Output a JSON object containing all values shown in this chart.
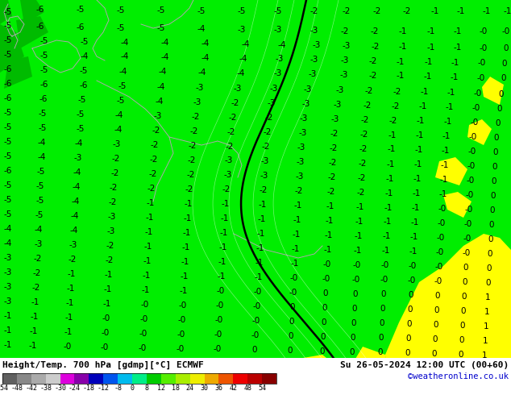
{
  "title_left": "Height/Temp. 700 hPa [gdmp][°C] ECMWF",
  "title_right": "Su 26-05-2024 12:00 UTC (00+60)",
  "credit": "©weatheronline.co.uk",
  "colorbar_colors": [
    "#606060",
    "#888888",
    "#aaaaaa",
    "#cccccc",
    "#dd00dd",
    "#8800aa",
    "#0000bb",
    "#0055ee",
    "#00bbee",
    "#00ee88",
    "#00cc00",
    "#55ee00",
    "#aaee00",
    "#eeee00",
    "#eeaa00",
    "#ee5500",
    "#ee0000",
    "#bb0000",
    "#880000"
  ],
  "colorbar_tick_labels": [
    "-54",
    "-48",
    "-42",
    "-38",
    "-30",
    "-24",
    "-18",
    "-12",
    "-8",
    "0",
    "8",
    "12",
    "18",
    "24",
    "30",
    "36",
    "42",
    "48",
    "54"
  ],
  "map_bg_color": "#00ee00",
  "darker_green": "#00bb00",
  "yellow_color": "#ffff00",
  "fig_bg_color": "#00ee00",
  "title_fontsize": 8.0,
  "credit_fontsize": 7.5,
  "tick_fontsize": 6.0,
  "numbers_fontsize": 7.5,
  "coastline_color": "#aaaaaa",
  "contour_line_color": "#000000",
  "number_color": "#000000",
  "bottom_bg": "#ffffff"
}
